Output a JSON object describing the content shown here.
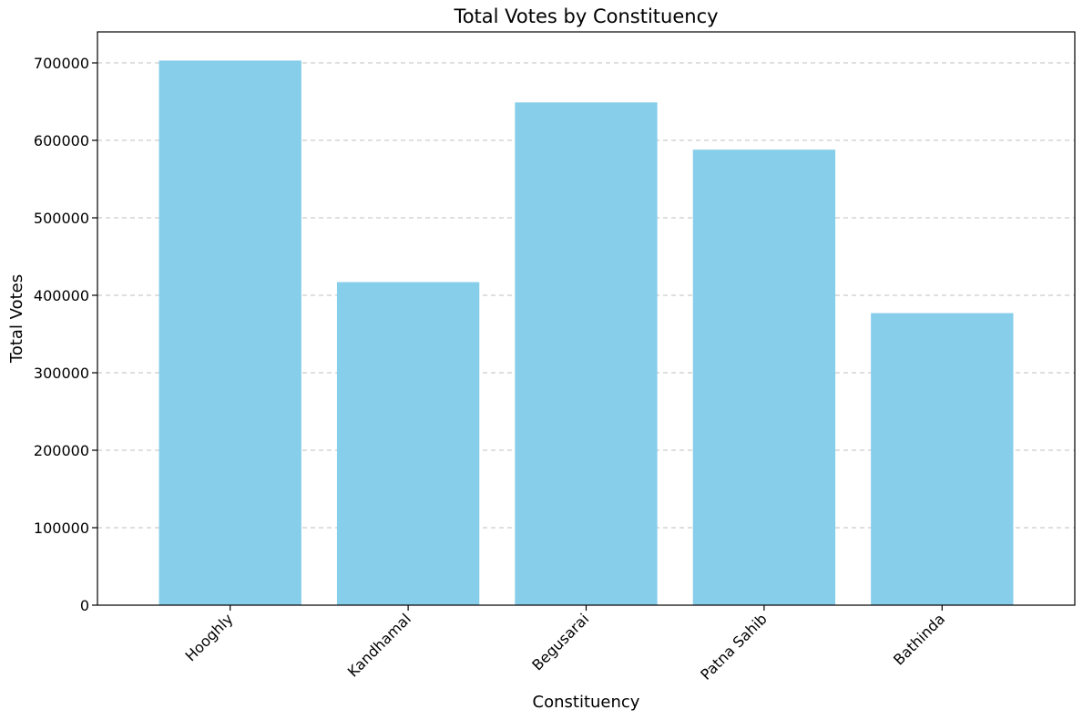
{
  "chart_data": {
    "type": "bar",
    "title": "Total Votes by Constituency",
    "xlabel": "Constituency",
    "ylabel": "Total Votes",
    "categories": [
      "Hooghly",
      "Kandhamal",
      "Begusarai",
      "Patna Sahib",
      "Bathinda"
    ],
    "values": [
      703000,
      417000,
      649000,
      588000,
      377000
    ],
    "ylim": [
      0,
      740000
    ],
    "yticks": [
      0,
      100000,
      200000,
      300000,
      400000,
      500000,
      600000,
      700000
    ],
    "ytick_labels": [
      "0",
      "100000",
      "200000",
      "300000",
      "400000",
      "500000",
      "600000",
      "700000"
    ],
    "grid": "y-dashed",
    "bar_color": "#87ceeb",
    "xtick_rotation": "45deg"
  }
}
